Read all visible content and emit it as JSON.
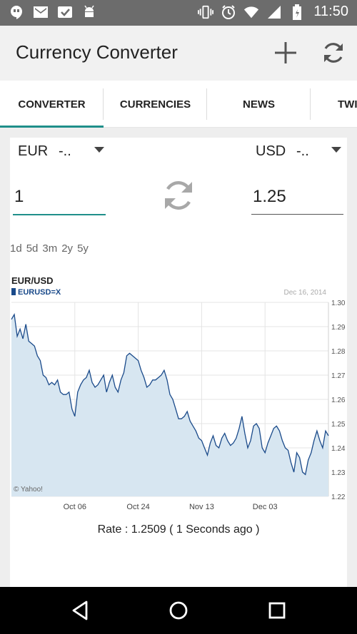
{
  "status_bar": {
    "time": "11:50"
  },
  "app_bar": {
    "title": "Currency Converter",
    "add_icon": "plus-icon",
    "refresh_icon": "refresh-icon"
  },
  "tabs": [
    {
      "label": "CONVERTER",
      "active": true
    },
    {
      "label": "CURRENCIES",
      "active": false
    },
    {
      "label": "NEWS",
      "active": false
    },
    {
      "label": "TWI",
      "active": false
    }
  ],
  "converter": {
    "from": {
      "currency": "EUR",
      "suffix": "-..",
      "amount": "1"
    },
    "to": {
      "currency": "USD",
      "suffix": "-..",
      "amount": "1.25"
    },
    "accent": "#1f8f8a"
  },
  "ranges": [
    "1d",
    "5d",
    "3m",
    "2y",
    "5y"
  ],
  "chart_data": {
    "type": "area",
    "title": "EUR/USD",
    "legend": "EURUSD=X",
    "date_label": "Dec 16, 2014",
    "watermark": "© Yahoo!",
    "x_tick_labels": [
      "Oct 06",
      "Oct 24",
      "Nov 13",
      "Dec 03"
    ],
    "x_tick_index": [
      22,
      44,
      66,
      88
    ],
    "y_ticks": [
      "1.30",
      "1.29",
      "1.28",
      "1.27",
      "1.26",
      "1.25",
      "1.24",
      "1.23",
      "1.22"
    ],
    "ylim": [
      1.22,
      1.3
    ],
    "grid": true,
    "series": [
      {
        "values": [
          1.293,
          1.295,
          1.286,
          1.289,
          1.285,
          1.291,
          1.284,
          1.283,
          1.282,
          1.278,
          1.276,
          1.27,
          1.269,
          1.266,
          1.267,
          1.266,
          1.268,
          1.263,
          1.262,
          1.262,
          1.263,
          1.256,
          1.253,
          1.263,
          1.266,
          1.268,
          1.269,
          1.272,
          1.267,
          1.265,
          1.266,
          1.268,
          1.27,
          1.263,
          1.267,
          1.27,
          1.265,
          1.263,
          1.268,
          1.271,
          1.278,
          1.279,
          1.278,
          1.277,
          1.276,
          1.272,
          1.269,
          1.265,
          1.266,
          1.268,
          1.268,
          1.269,
          1.27,
          1.272,
          1.268,
          1.262,
          1.26,
          1.256,
          1.252,
          1.252,
          1.253,
          1.255,
          1.251,
          1.249,
          1.247,
          1.244,
          1.243,
          1.24,
          1.237,
          1.242,
          1.245,
          1.241,
          1.24,
          1.244,
          1.246,
          1.243,
          1.241,
          1.242,
          1.244,
          1.248,
          1.253,
          1.246,
          1.24,
          1.243,
          1.249,
          1.25,
          1.248,
          1.24,
          1.238,
          1.242,
          1.245,
          1.248,
          1.249,
          1.247,
          1.243,
          1.24,
          1.239,
          1.234,
          1.23,
          1.238,
          1.236,
          1.23,
          1.229,
          1.235,
          1.238,
          1.243,
          1.247,
          1.243,
          1.24,
          1.247,
          1.245
        ]
      }
    ]
  },
  "rate_text": "Rate : 1.2509 ( 1 Seconds ago )",
  "nav": {
    "back": "back-icon",
    "home": "home-icon",
    "recents": "recents-icon"
  }
}
